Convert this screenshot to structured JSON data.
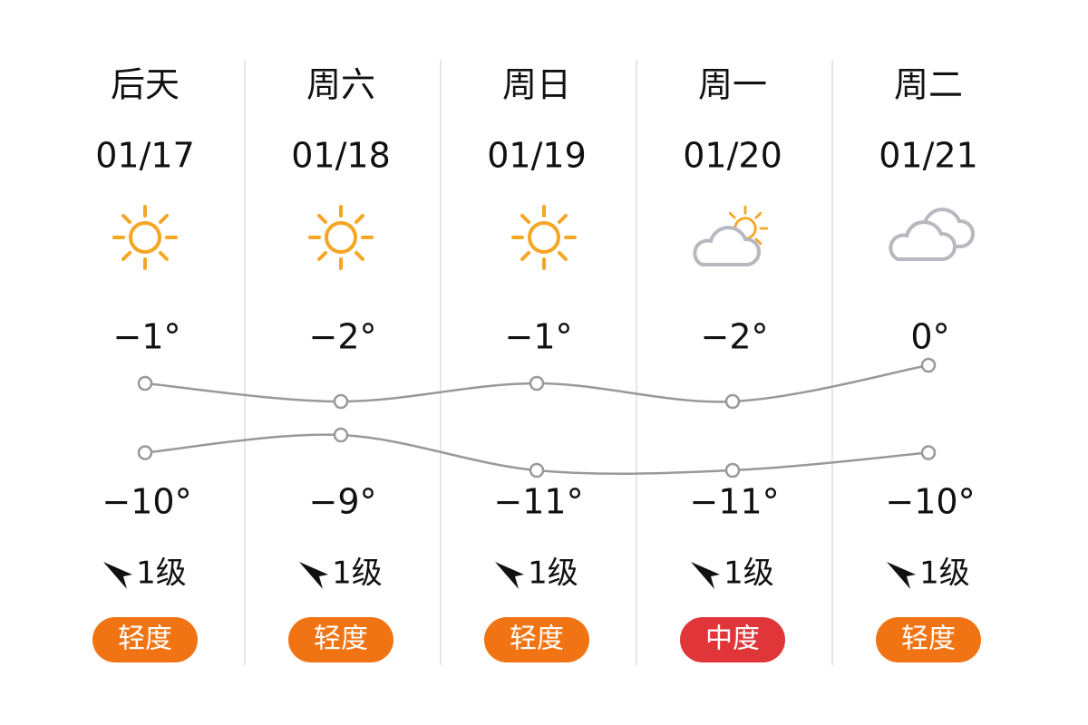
{
  "days": [
    {
      "name": "后天",
      "date": "01/17",
      "high": -1,
      "high_label": "−1°",
      "low": -10,
      "low_label": "−10°",
      "wind": "1级",
      "aqi": "轻度",
      "aqi_color": "#f07414"
    },
    {
      "name": "周六",
      "date": "01/18",
      "high": -2,
      "high_label": "−2°",
      "low": -9,
      "low_label": "−9°",
      "wind": "1级",
      "aqi": "轻度",
      "aqi_color": "#f07414"
    },
    {
      "name": "周日",
      "date": "01/19",
      "high": -1,
      "high_label": "−1°",
      "low": -11,
      "low_label": "−11°",
      "wind": "1级",
      "aqi": "轻度",
      "aqi_color": "#f07414"
    },
    {
      "name": "周一",
      "date": "01/20",
      "high": -2,
      "high_label": "−2°",
      "low": -11,
      "low_label": "−11°",
      "wind": "1级",
      "aqi": "中度",
      "aqi_color": "#e0363a"
    },
    {
      "name": "周二",
      "date": "01/21",
      "high": 0,
      "high_label": "0°",
      "low": -10,
      "low_label": "−10°",
      "wind": "1级",
      "aqi": "轻度",
      "aqi_color": "#f07414"
    }
  ]
}
